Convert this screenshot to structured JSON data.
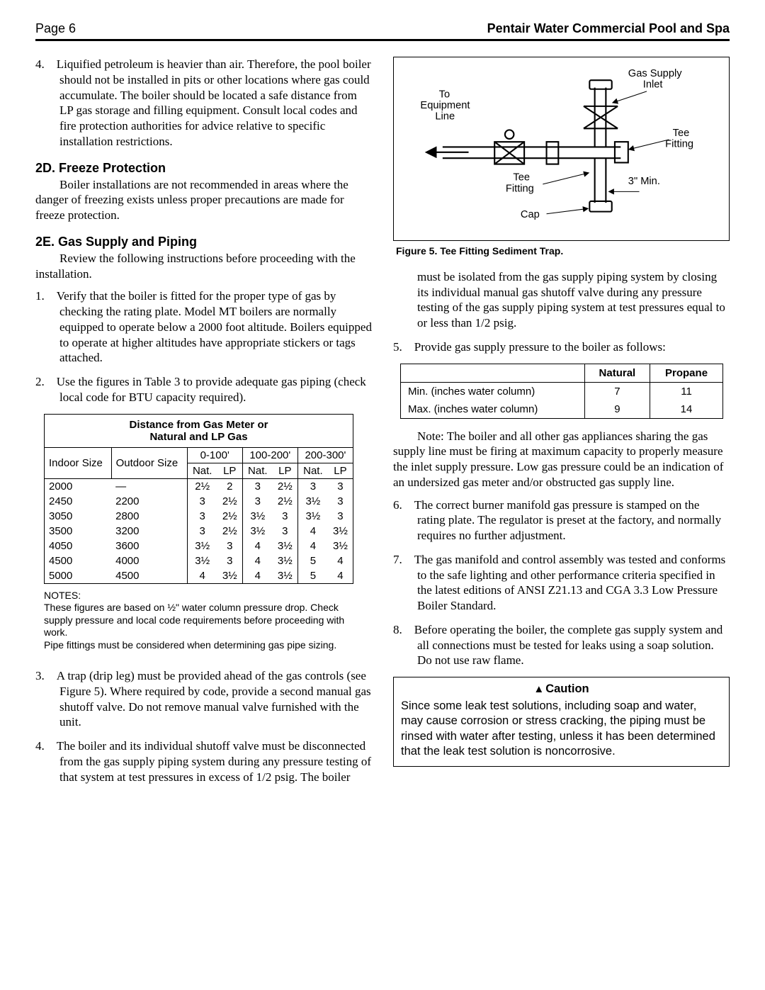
{
  "header": {
    "page_label": "Page 6",
    "title": "Pentair Water Commercial Pool and Spa"
  },
  "left": {
    "item4": "4. Liquified petroleum is heavier than air. Therefore, the pool boiler should not be installed in pits or other locations where gas could accumulate. The boiler should be located a safe distance from LP gas storage and filling equipment. Consult local codes and fire protection authorities for advice relative to specific installation restrictions.",
    "sec2d_title": "2D.  Freeze Protection",
    "sec2d_body": "Boiler installations are not recommended in areas where the danger of freezing exists unless proper precautions are made for freeze protection.",
    "sec2e_title": "2E.  Gas Supply and Piping",
    "sec2e_lead": "Review the following instructions before proceeding with the installation.",
    "sec2e_1": "1. Verify that the boiler is fitted for the proper type of gas by checking the rating plate. Model MT boilers are normally equipped to operate below a 2000 foot altitude. Boilers equipped to operate at higher altitudes have appropriate stickers or tags attached.",
    "sec2e_2": "2. Use the figures in Table 3 to provide adequate gas piping (check local code for BTU capacity required).",
    "gas_table": {
      "caption": "Distance from Gas Meter or\nNatural and LP Gas",
      "ranges": [
        "0-100'",
        "100-200'",
        "200-300'"
      ],
      "col_labels": {
        "indoor": "Indoor\nSize",
        "outdoor": "Outdoor\nSize",
        "nat": "Nat.",
        "lp": "LP"
      },
      "rows": [
        {
          "indoor": "2000",
          "outdoor": "—",
          "v": [
            "2½",
            "2",
            "3",
            "2½",
            "3",
            "3"
          ]
        },
        {
          "indoor": "2450",
          "outdoor": "2200",
          "v": [
            "3",
            "2½",
            "3",
            "2½",
            "3½",
            "3"
          ]
        },
        {
          "indoor": "3050",
          "outdoor": "2800",
          "v": [
            "3",
            "2½",
            "3½",
            "3",
            "3½",
            "3"
          ]
        },
        {
          "indoor": "3500",
          "outdoor": "3200",
          "v": [
            "3",
            "2½",
            "3½",
            "3",
            "4",
            "3½"
          ]
        },
        {
          "indoor": "4050",
          "outdoor": "3600",
          "v": [
            "3½",
            "3",
            "4",
            "3½",
            "4",
            "3½"
          ]
        },
        {
          "indoor": "4500",
          "outdoor": "4000",
          "v": [
            "3½",
            "3",
            "4",
            "3½",
            "5",
            "4"
          ]
        },
        {
          "indoor": "5000",
          "outdoor": "4500",
          "v": [
            "4",
            "3½",
            "4",
            "3½",
            "5",
            "4"
          ]
        }
      ],
      "notes_title": "NOTES:",
      "notes_body1": "These figures are based on ½\" water column pressure drop. Check supply pressure and local code requirements before proceeding with work.",
      "notes_body2": "Pipe fittings must be considered when determining gas pipe sizing."
    },
    "sec2e_3": "3. A trap (drip leg) must be provided ahead of the gas controls (see Figure 5). Where required by code, provide a second manual gas shutoff valve. Do not remove manual valve furnished with the unit.",
    "sec2e_4": "4. The boiler and its individual shutoff valve must be disconnected from the gas supply piping system during any pressure testing of that system at test pressures in excess of 1/2 psig. The boiler"
  },
  "right": {
    "figure": {
      "labels": {
        "to_equip": "To\nEquipment\nLine",
        "gas_supply": "Gas Supply\nInlet",
        "tee1": "Tee\nFitting",
        "tee2": "Tee\nFitting",
        "min": "3\" Min.",
        "cap": "Cap"
      },
      "caption": "Figure 5. Tee Fitting Sediment Trap."
    },
    "cont4": "must be isolated from the gas supply piping system by closing its individual manual gas shutoff valve during any pressure testing of the gas supply piping system at test pressures equal to or less than 1/2 psig.",
    "item5": "5. Provide gas supply pressure to the boiler as follows:",
    "press_table": {
      "headers": [
        "Natural",
        "Propane"
      ],
      "rows": [
        {
          "label": "Min. (inches water column)",
          "nat": "7",
          "prop": "11"
        },
        {
          "label": "Max. (inches water column)",
          "nat": "9",
          "prop": "14"
        }
      ]
    },
    "note_para": "Note: The boiler and all other gas appliances sharing the gas supply line must be firing at maximum capacity to properly measure the inlet supply pressure. Low gas pressure could be an indication of an undersized gas meter and/or obstructed gas supply line.",
    "item6": "6. The correct burner manifold gas pressure is stamped on the rating plate. The regulator is preset at the factory, and normally requires no further adjustment.",
    "item7": "7. The gas manifold and control assembly was tested and conforms to the safe lighting and other performance criteria specified in the latest editions of ANSI Z21.13 and CGA 3.3 Low Pressure Boiler Standard.",
    "item8": "8. Before operating the boiler, the complete gas supply system and all connections must be tested for leaks using a soap solution. Do not use raw flame.",
    "caution": {
      "title": "Caution",
      "body": "Since some leak test solutions, including soap and water, may cause corrosion or stress cracking, the piping must be rinsed with water after testing, unless it has been determined that the leak test solution is noncorrosive."
    }
  }
}
